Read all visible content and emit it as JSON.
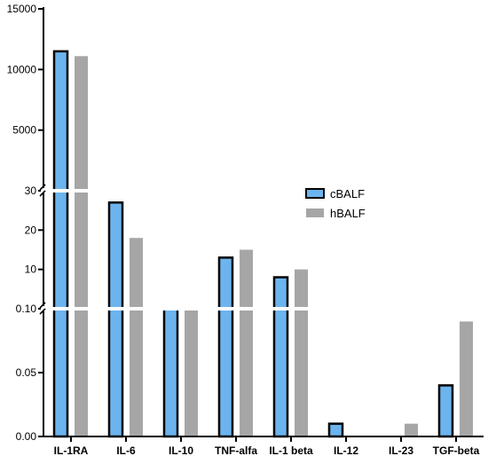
{
  "chart_data": {
    "type": "bar",
    "categories": [
      "IL-1RA",
      "IL-6",
      "IL-10",
      "TNF-alfa",
      "IL-1 beta",
      "IL-12",
      "IL-23",
      "TGF-beta"
    ],
    "series": [
      {
        "name": "cBALF",
        "values": [
          11500,
          27,
          0.107,
          13,
          8,
          0.01,
          0,
          0.04
        ],
        "color": "#6cb4ee"
      },
      {
        "name": "hBALF",
        "values": [
          11100,
          18,
          0.108,
          15,
          10,
          0,
          0.01,
          0.09
        ],
        "color": "#a6a6a6"
      }
    ],
    "y_segments": [
      {
        "range": [
          0,
          0.1
        ],
        "ticks": [
          0,
          0.05,
          0.1
        ],
        "tick_labels": [
          "0.00",
          "0.05",
          "0.10"
        ]
      },
      {
        "range": [
          0,
          30
        ],
        "ticks": [
          10,
          20,
          30
        ],
        "tick_labels": [
          "10",
          "20",
          "30"
        ]
      },
      {
        "range": [
          0,
          15000
        ],
        "ticks": [
          5000,
          10000,
          15000
        ],
        "tick_labels": [
          "5000",
          "10000",
          "15000"
        ]
      }
    ],
    "axis_break": true,
    "legend_position": "right-middle",
    "title": "",
    "xlabel": "",
    "ylabel": ""
  }
}
